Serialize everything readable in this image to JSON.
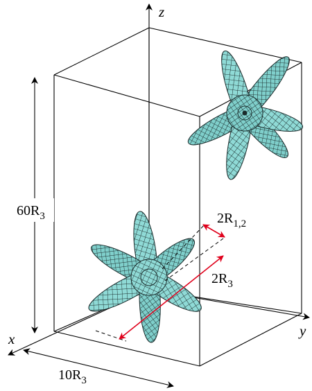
{
  "axes": {
    "x": "x",
    "y": "y",
    "z": "z"
  },
  "dimensions": {
    "height": {
      "main": "60R",
      "sub": "3"
    },
    "width": {
      "main": "10R",
      "sub": "3"
    },
    "arm_radius": {
      "main": "2R",
      "sub": "1,2"
    },
    "length": {
      "main": "2R",
      "sub": "3"
    }
  },
  "colors": {
    "particle_fill": "#8fdad6",
    "mesh": "#1a2a2a",
    "dimension_arrow": "#e0001b",
    "box": "#000000"
  },
  "particles": [
    {
      "name": "six-armed star-shaped particle",
      "position": "lower-left"
    },
    {
      "name": "six-armed star-shaped particle",
      "position": "upper-right"
    }
  ]
}
